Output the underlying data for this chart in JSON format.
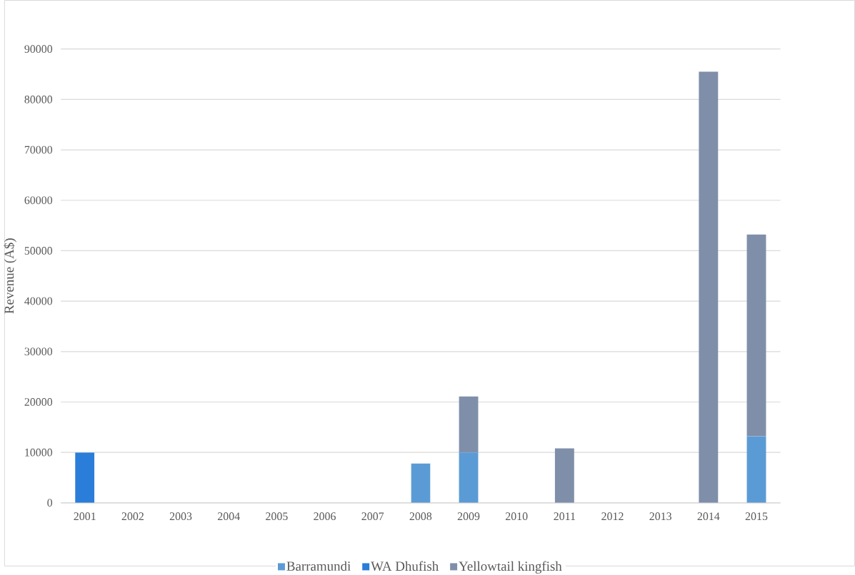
{
  "chart_data": {
    "type": "bar",
    "stacked": true,
    "ylabel": "Revenue (A$)",
    "categories": [
      "2001",
      "2002",
      "2003",
      "2004",
      "2005",
      "2006",
      "2007",
      "2008",
      "2009",
      "2010",
      "2011",
      "2012",
      "2013",
      "2014",
      "2015"
    ],
    "series": [
      {
        "name": "Barramundi",
        "color": "#5b9bd5",
        "values": [
          null,
          null,
          null,
          null,
          null,
          null,
          null,
          7800,
          10000,
          null,
          null,
          null,
          null,
          null,
          13200
        ]
      },
      {
        "name": "WA Dhufish",
        "color": "#2a7dd8",
        "values": [
          10000,
          null,
          null,
          null,
          null,
          null,
          null,
          null,
          null,
          null,
          null,
          null,
          null,
          null,
          null
        ]
      },
      {
        "name": "Yellowtail kingfish",
        "color": "#7f8fa9",
        "values": [
          null,
          null,
          null,
          null,
          null,
          null,
          null,
          null,
          11100,
          null,
          10800,
          null,
          null,
          85500,
          40000
        ]
      }
    ],
    "ylim": [
      0,
      90000
    ],
    "yticks": [
      0,
      10000,
      20000,
      30000,
      40000,
      50000,
      60000,
      70000,
      80000,
      90000
    ],
    "grid": "y",
    "legend": "bottom"
  }
}
